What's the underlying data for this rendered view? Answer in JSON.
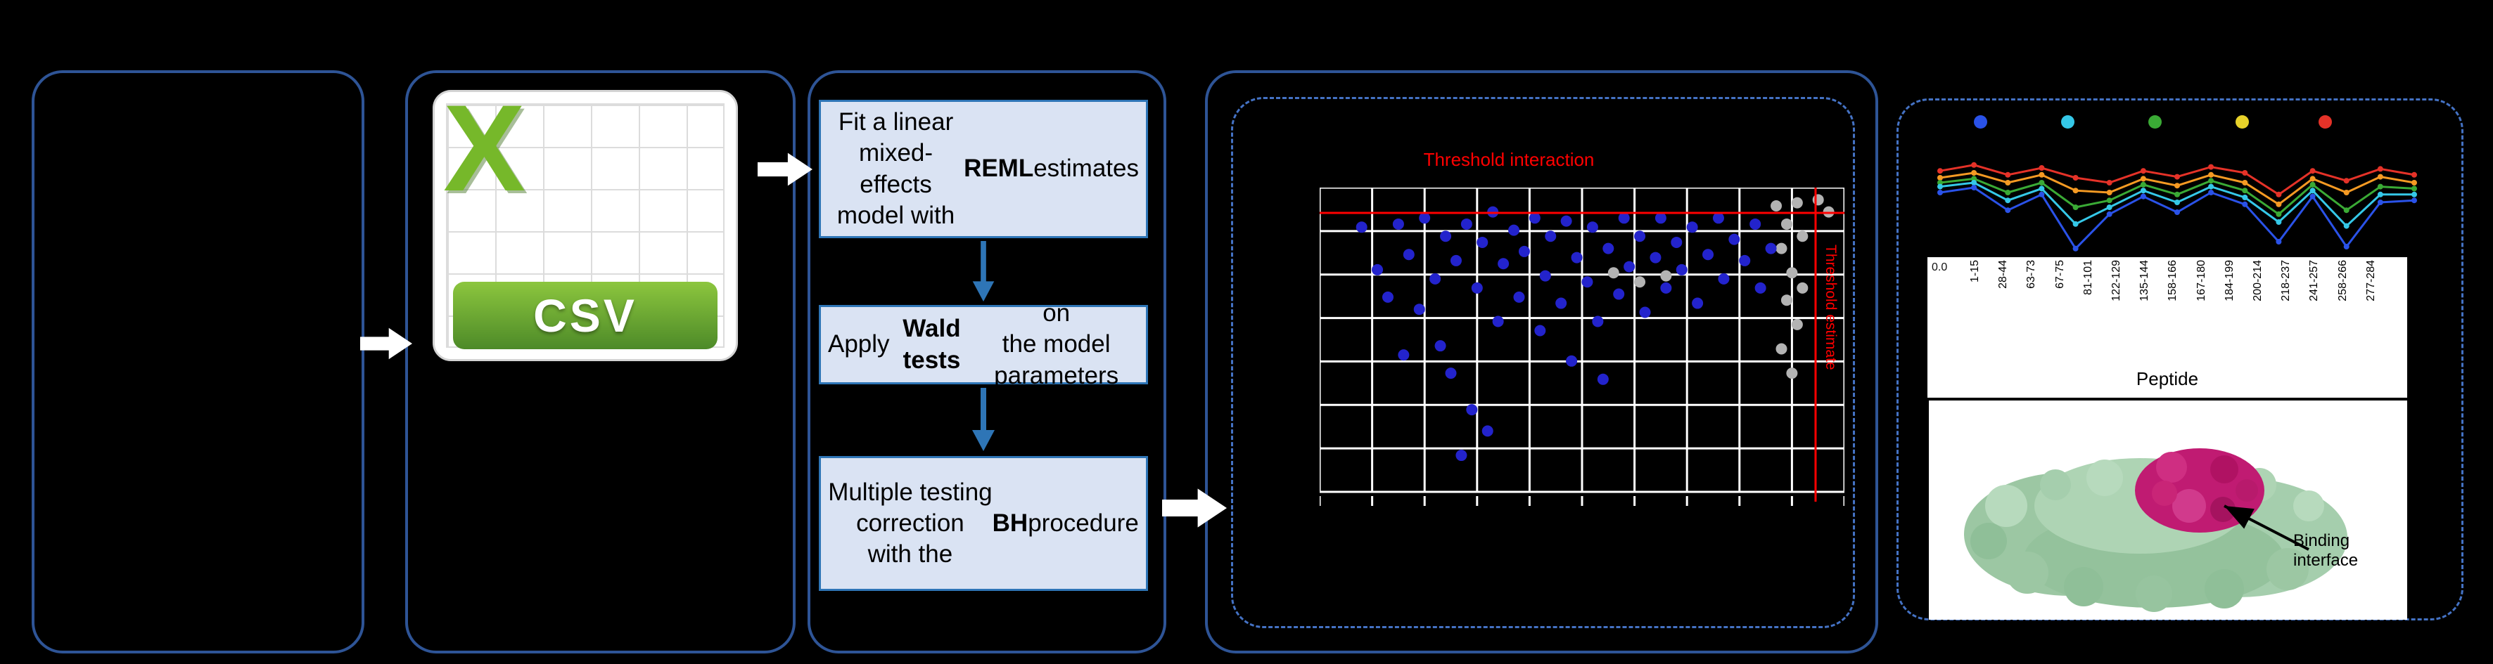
{
  "colors": {
    "background": "#000000",
    "panel_border": "#2e5496",
    "dashed_border": "#4472c4",
    "box_fill": "#dae3f3",
    "box_border": "#2e75b6",
    "flow_arrow": "#2e75b6",
    "white_arrow": "#ffffff",
    "csv_green": "#76b82a",
    "csv_banner_top": "#8cc63e",
    "csv_banner_bottom": "#4d8a28",
    "point_blue": "#2323cc",
    "point_gray": "#b3b3b3",
    "threshold_red": "#ff0000",
    "grid_line": "#ffffff",
    "protein_green": "#9cc7a3",
    "protein_magenta": "#c01b72"
  },
  "csv_icon": {
    "logo_letter": "X",
    "banner_label": "CSV"
  },
  "flow": {
    "boxes": [
      {
        "segments": [
          {
            "t": "Fit a linear mixed-\neffects model with\n",
            "b": false
          },
          {
            "t": "REML",
            "b": true
          },
          {
            "t": " estimates",
            "b": false
          }
        ]
      },
      {
        "segments": [
          {
            "t": "Apply ",
            "b": false
          },
          {
            "t": "Wald tests",
            "b": true
          },
          {
            "t": " on\nthe model parameters",
            "b": false
          }
        ]
      },
      {
        "segments": [
          {
            "t": "Multiple testing\ncorrection\nwith the ",
            "b": false
          },
          {
            "t": "BH",
            "b": true
          },
          {
            "t": " procedure",
            "b": false
          }
        ]
      }
    ]
  },
  "scatter": {
    "title": "Threshold interaction",
    "side_label": "Threshold estimate",
    "grid": {
      "cols": 10,
      "rows": 7
    },
    "threshold_y": 0.083,
    "threshold_x": 0.945,
    "blue_points": [
      [
        0.08,
        0.13
      ],
      [
        0.11,
        0.27
      ],
      [
        0.13,
        0.36
      ],
      [
        0.15,
        0.12
      ],
      [
        0.16,
        0.55
      ],
      [
        0.17,
        0.22
      ],
      [
        0.19,
        0.4
      ],
      [
        0.2,
        0.1
      ],
      [
        0.22,
        0.3
      ],
      [
        0.23,
        0.52
      ],
      [
        0.24,
        0.16
      ],
      [
        0.25,
        0.61
      ],
      [
        0.26,
        0.24
      ],
      [
        0.27,
        0.88
      ],
      [
        0.28,
        0.12
      ],
      [
        0.29,
        0.73
      ],
      [
        0.3,
        0.33
      ],
      [
        0.31,
        0.18
      ],
      [
        0.32,
        0.8
      ],
      [
        0.33,
        0.08
      ],
      [
        0.34,
        0.44
      ],
      [
        0.35,
        0.25
      ],
      [
        0.37,
        0.14
      ],
      [
        0.38,
        0.36
      ],
      [
        0.39,
        0.21
      ],
      [
        0.41,
        0.1
      ],
      [
        0.42,
        0.47
      ],
      [
        0.43,
        0.29
      ],
      [
        0.44,
        0.16
      ],
      [
        0.46,
        0.38
      ],
      [
        0.47,
        0.11
      ],
      [
        0.48,
        0.57
      ],
      [
        0.49,
        0.23
      ],
      [
        0.51,
        0.31
      ],
      [
        0.52,
        0.13
      ],
      [
        0.53,
        0.44
      ],
      [
        0.54,
        0.63
      ],
      [
        0.55,
        0.2
      ],
      [
        0.57,
        0.35
      ],
      [
        0.58,
        0.1
      ],
      [
        0.59,
        0.26
      ],
      [
        0.61,
        0.16
      ],
      [
        0.62,
        0.41
      ],
      [
        0.64,
        0.23
      ],
      [
        0.65,
        0.1
      ],
      [
        0.66,
        0.33
      ],
      [
        0.68,
        0.18
      ],
      [
        0.69,
        0.27
      ],
      [
        0.71,
        0.13
      ],
      [
        0.72,
        0.38
      ],
      [
        0.74,
        0.22
      ],
      [
        0.76,
        0.1
      ],
      [
        0.77,
        0.3
      ],
      [
        0.79,
        0.17
      ],
      [
        0.81,
        0.24
      ],
      [
        0.83,
        0.12
      ],
      [
        0.84,
        0.33
      ],
      [
        0.86,
        0.2
      ]
    ],
    "gray_points": [
      [
        0.87,
        0.06
      ],
      [
        0.89,
        0.12
      ],
      [
        0.91,
        0.05
      ],
      [
        0.88,
        0.2
      ],
      [
        0.9,
        0.28
      ],
      [
        0.92,
        0.16
      ],
      [
        0.89,
        0.37
      ],
      [
        0.91,
        0.45
      ],
      [
        0.88,
        0.53
      ],
      [
        0.9,
        0.61
      ],
      [
        0.92,
        0.33
      ],
      [
        0.95,
        0.04
      ],
      [
        0.97,
        0.08
      ],
      [
        0.56,
        0.28
      ],
      [
        0.61,
        0.31
      ],
      [
        0.66,
        0.29
      ]
    ]
  },
  "results": {
    "legend_colors": [
      "#2a52e8",
      "#35c8e8",
      "#3aaa35",
      "#e8d22a",
      "#e53228"
    ],
    "line_series": [
      {
        "color": "#e53228",
        "y": [
          0.18,
          0.12,
          0.22,
          0.15,
          0.25,
          0.3,
          0.18,
          0.24,
          0.14,
          0.2,
          0.42,
          0.18,
          0.28,
          0.16,
          0.22
        ]
      },
      {
        "color": "#f59a23",
        "y": [
          0.25,
          0.2,
          0.3,
          0.22,
          0.38,
          0.4,
          0.26,
          0.33,
          0.22,
          0.3,
          0.52,
          0.26,
          0.4,
          0.24,
          0.3
        ]
      },
      {
        "color": "#3aaa35",
        "y": [
          0.3,
          0.26,
          0.4,
          0.3,
          0.55,
          0.48,
          0.32,
          0.42,
          0.28,
          0.38,
          0.62,
          0.32,
          0.58,
          0.34,
          0.36
        ]
      },
      {
        "color": "#35c8e8",
        "y": [
          0.34,
          0.3,
          0.48,
          0.36,
          0.72,
          0.55,
          0.38,
          0.5,
          0.34,
          0.45,
          0.7,
          0.38,
          0.74,
          0.42,
          0.42
        ]
      },
      {
        "color": "#2a52e8",
        "y": [
          0.4,
          0.35,
          0.58,
          0.42,
          0.97,
          0.62,
          0.44,
          0.6,
          0.4,
          0.52,
          0.9,
          0.44,
          0.95,
          0.5,
          0.48
        ]
      }
    ],
    "ytick": "0.0",
    "peptides": [
      "1-15",
      "28-44",
      "63-73",
      "67-75",
      "81-101",
      "122-129",
      "135-144",
      "158-166",
      "167-180",
      "184-199",
      "200-214",
      "218-237",
      "241-257",
      "258-266",
      "277-284"
    ],
    "xlabel": "Peptide",
    "binding_label_line1": "Binding",
    "binding_label_line2": "interface"
  }
}
